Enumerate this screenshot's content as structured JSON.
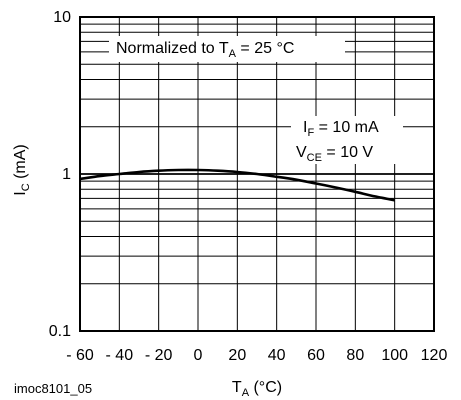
{
  "chart_data": {
    "type": "line",
    "x_scale": "linear",
    "y_scale": "log",
    "xlim": [
      -60,
      120
    ],
    "ylim": [
      0.1,
      10
    ],
    "x_ticks": [
      -60,
      -40,
      -20,
      0,
      20,
      40,
      60,
      80,
      100,
      120
    ],
    "x_tick_labels": [
      "- 60",
      "- 40",
      "- 20",
      "0",
      "20",
      "40",
      "60",
      "80",
      "100",
      "120"
    ],
    "y_tick_labels": [
      "10",
      "1",
      "0.1"
    ],
    "y_ticks": [
      10,
      1,
      0.1
    ],
    "grid": true,
    "series": [
      {
        "x": [
          -60,
          -50,
          -40,
          -30,
          -20,
          -10,
          0,
          10,
          20,
          30,
          40,
          50,
          60,
          70,
          80,
          90,
          100
        ],
        "y": [
          0.93,
          0.97,
          1.0,
          1.03,
          1.05,
          1.06,
          1.06,
          1.05,
          1.03,
          1.0,
          0.96,
          0.92,
          0.87,
          0.82,
          0.77,
          0.72,
          0.68
        ]
      }
    ],
    "xlabel": {
      "main": "T",
      "sub": "A",
      "rest": " (°C)"
    },
    "ylabel": {
      "main": "I",
      "sub": "C",
      "rest": " (mA)"
    },
    "annotations": {
      "normalized": {
        "pre": "Normalized to T",
        "sub": "A",
        "post": " = 25 °C"
      },
      "if_line": {
        "main": "I",
        "sub": "F",
        "post": " = 10 mA"
      },
      "vce_line": {
        "main": "V",
        "sub": "CE",
        "post": " = 10 V"
      }
    },
    "figure_id": "imoc8101_05"
  }
}
